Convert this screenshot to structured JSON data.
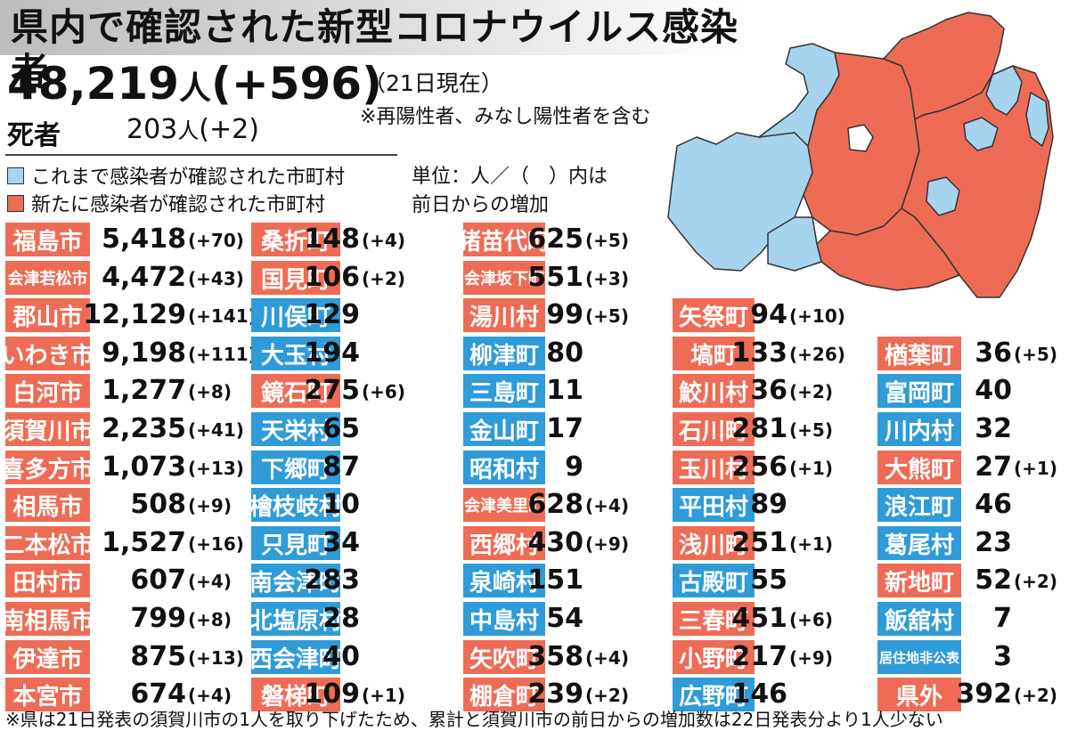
{
  "title": "県内で確認された新型コロナウイルス感染者",
  "summary": {
    "total": "48,219",
    "total_unit": "人",
    "total_change": "(+596)",
    "as_of": "（21日現在）",
    "note": "※再陽性者、みなし陽性者を含む",
    "deaths_label": "死者",
    "deaths": "203",
    "deaths_unit": "人",
    "deaths_change": "(+2)"
  },
  "legend": {
    "previous": "これまで感染者が確認された市町村",
    "new": "新たに感染者が確認された市町村",
    "units_line1": "単位：人／（　）内は",
    "units_line2": "前日からの増加"
  },
  "colors": {
    "new": "#ee6c55",
    "previous": "#2f9bd8",
    "map_previous": "#a6d4ef",
    "map_new": "#ee6c55"
  },
  "columns": [
    [
      {
        "name": "福島市",
        "count": "5,418",
        "change": "(+70)",
        "status": "new"
      },
      {
        "name": "会津若松市",
        "count": "4,472",
        "change": "(+43)",
        "status": "new"
      },
      {
        "name": "郡山市",
        "count": "12,129",
        "change": "(+141)",
        "status": "new"
      },
      {
        "name": "いわき市",
        "count": "9,198",
        "change": "(+111)",
        "status": "new"
      },
      {
        "name": "白河市",
        "count": "1,277",
        "change": "(+8)",
        "status": "new"
      },
      {
        "name": "須賀川市",
        "count": "2,235",
        "change": "(+41)",
        "status": "new"
      },
      {
        "name": "喜多方市",
        "count": "1,073",
        "change": "(+13)",
        "status": "new"
      },
      {
        "name": "相馬市",
        "count": "508",
        "change": "(+9)",
        "status": "new"
      },
      {
        "name": "二本松市",
        "count": "1,527",
        "change": "(+16)",
        "status": "new"
      },
      {
        "name": "田村市",
        "count": "607",
        "change": "(+4)",
        "status": "new"
      },
      {
        "name": "南相馬市",
        "count": "799",
        "change": "(+8)",
        "status": "new"
      },
      {
        "name": "伊達市",
        "count": "875",
        "change": "(+13)",
        "status": "new"
      },
      {
        "name": "本宮市",
        "count": "674",
        "change": "(+4)",
        "status": "new"
      }
    ],
    [
      {
        "name": "桑折町",
        "count": "148",
        "change": "(+4)",
        "status": "new"
      },
      {
        "name": "国見町",
        "count": "106",
        "change": "(+2)",
        "status": "new"
      },
      {
        "name": "川俣町",
        "count": "129",
        "change": "",
        "status": "previous"
      },
      {
        "name": "大玉村",
        "count": "194",
        "change": "",
        "status": "previous"
      },
      {
        "name": "鏡石町",
        "count": "275",
        "change": "(+6)",
        "status": "new"
      },
      {
        "name": "天栄村",
        "count": "65",
        "change": "",
        "status": "previous"
      },
      {
        "name": "下郷町",
        "count": "87",
        "change": "",
        "status": "previous"
      },
      {
        "name": "檜枝岐村",
        "count": "10",
        "change": "",
        "status": "previous"
      },
      {
        "name": "只見町",
        "count": "34",
        "change": "",
        "status": "previous"
      },
      {
        "name": "南会津町",
        "count": "283",
        "change": "",
        "status": "previous"
      },
      {
        "name": "北塩原村",
        "count": "28",
        "change": "",
        "status": "previous"
      },
      {
        "name": "西会津町",
        "count": "40",
        "change": "",
        "status": "previous"
      },
      {
        "name": "磐梯町",
        "count": "109",
        "change": "(+1)",
        "status": "new"
      }
    ],
    [
      {
        "name": "猪苗代町",
        "count": "625",
        "change": "(+5)",
        "status": "new"
      },
      {
        "name": "会津坂下町",
        "count": "551",
        "change": "(+3)",
        "status": "new"
      },
      {
        "name": "湯川村",
        "count": "99",
        "change": "(+5)",
        "status": "new"
      },
      {
        "name": "柳津町",
        "count": "80",
        "change": "",
        "status": "previous"
      },
      {
        "name": "三島町",
        "count": "11",
        "change": "",
        "status": "previous"
      },
      {
        "name": "金山町",
        "count": "17",
        "change": "",
        "status": "previous"
      },
      {
        "name": "昭和村",
        "count": "9",
        "change": "",
        "status": "previous"
      },
      {
        "name": "会津美里町",
        "count": "628",
        "change": "(+4)",
        "status": "new"
      },
      {
        "name": "西郷村",
        "count": "430",
        "change": "(+9)",
        "status": "new"
      },
      {
        "name": "泉崎村",
        "count": "151",
        "change": "",
        "status": "previous"
      },
      {
        "name": "中島村",
        "count": "54",
        "change": "",
        "status": "previous"
      },
      {
        "name": "矢吹町",
        "count": "358",
        "change": "(+4)",
        "status": "new"
      },
      {
        "name": "棚倉町",
        "count": "239",
        "change": "(+2)",
        "status": "new"
      }
    ],
    [
      {
        "name": "矢祭町",
        "count": "94",
        "change": "(+10)",
        "status": "new"
      },
      {
        "name": "塙町",
        "count": "133",
        "change": "(+26)",
        "status": "new"
      },
      {
        "name": "鮫川村",
        "count": "36",
        "change": "(+2)",
        "status": "new"
      },
      {
        "name": "石川町",
        "count": "281",
        "change": "(+5)",
        "status": "new"
      },
      {
        "name": "玉川村",
        "count": "256",
        "change": "(+1)",
        "status": "new"
      },
      {
        "name": "平田村",
        "count": "89",
        "change": "",
        "status": "previous"
      },
      {
        "name": "浅川町",
        "count": "251",
        "change": "(+1)",
        "status": "new"
      },
      {
        "name": "古殿町",
        "count": "55",
        "change": "",
        "status": "previous"
      },
      {
        "name": "三春町",
        "count": "451",
        "change": "(+6)",
        "status": "new"
      },
      {
        "name": "小野町",
        "count": "217",
        "change": "(+9)",
        "status": "new"
      },
      {
        "name": "広野町",
        "count": "146",
        "change": "",
        "status": "previous"
      }
    ],
    [
      {
        "name": "楢葉町",
        "count": "36",
        "change": "(+5)",
        "status": "new"
      },
      {
        "name": "富岡町",
        "count": "40",
        "change": "",
        "status": "previous"
      },
      {
        "name": "川内村",
        "count": "32",
        "change": "",
        "status": "previous"
      },
      {
        "name": "大熊町",
        "count": "27",
        "change": "(+1)",
        "status": "new"
      },
      {
        "name": "浪江町",
        "count": "46",
        "change": "",
        "status": "previous"
      },
      {
        "name": "葛尾村",
        "count": "23",
        "change": "",
        "status": "previous"
      },
      {
        "name": "新地町",
        "count": "52",
        "change": "(+2)",
        "status": "new"
      },
      {
        "name": "飯舘村",
        "count": "7",
        "change": "",
        "status": "previous"
      },
      {
        "name": "居住地非公表",
        "count": "3",
        "change": "",
        "status": "previous"
      },
      {
        "name": "県外",
        "count": "392",
        "change": "(+2)",
        "status": "new"
      }
    ]
  ],
  "footnote": "※県は21日発表の須賀川市の1人を取り下げたため、累計と須賀川市の前日からの増加数は22日発表分より1人少ない"
}
